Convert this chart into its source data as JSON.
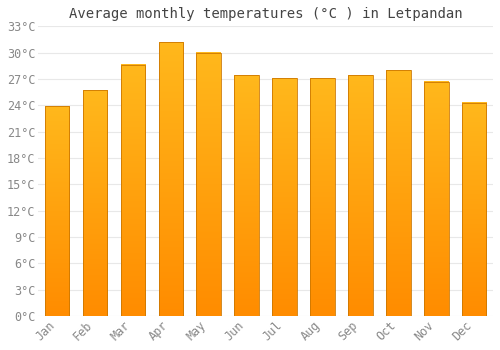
{
  "title": "Average monthly temperatures (°C ) in Letpandan",
  "months": [
    "Jan",
    "Feb",
    "Mar",
    "Apr",
    "May",
    "Jun",
    "Jul",
    "Aug",
    "Sep",
    "Oct",
    "Nov",
    "Dec"
  ],
  "values": [
    23.9,
    25.7,
    28.6,
    31.2,
    30.0,
    27.4,
    27.1,
    27.1,
    27.4,
    28.0,
    26.7,
    24.3
  ],
  "bar_color_top": "#FFB81C",
  "bar_color_bottom": "#FF8C00",
  "bar_edge_color": "#CC7700",
  "background_color": "#ffffff",
  "grid_color": "#e8e8e8",
  "text_color": "#888888",
  "title_color": "#444444",
  "ylim": [
    0,
    33
  ],
  "yticks": [
    0,
    3,
    6,
    9,
    12,
    15,
    18,
    21,
    24,
    27,
    30,
    33
  ],
  "ytick_labels": [
    "0°C",
    "3°C",
    "6°C",
    "9°C",
    "12°C",
    "15°C",
    "18°C",
    "21°C",
    "24°C",
    "27°C",
    "30°C",
    "33°C"
  ],
  "title_fontsize": 10,
  "tick_fontsize": 8.5,
  "bar_width": 0.65
}
